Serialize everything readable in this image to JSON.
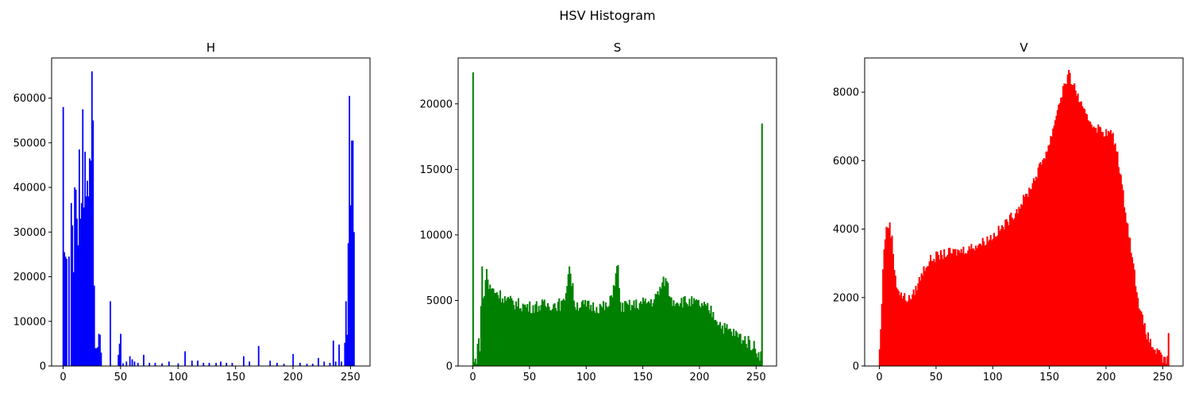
{
  "figure": {
    "suptitle": "HSV Histogram"
  },
  "chart_data": [
    {
      "type": "bar",
      "title": "H",
      "color": "#0000ff",
      "xlim": [
        -10,
        267
      ],
      "ylim": [
        0,
        69000
      ],
      "xticks": [
        0,
        50,
        100,
        150,
        200,
        250
      ],
      "yticks": [
        0,
        10000,
        20000,
        30000,
        40000,
        50000,
        60000
      ],
      "grid": false,
      "points": [
        [
          0,
          58000
        ],
        [
          1,
          25500
        ],
        [
          2,
          24500
        ],
        [
          3,
          24000
        ],
        [
          5,
          24500
        ],
        [
          7,
          36500
        ],
        [
          8,
          31500
        ],
        [
          9,
          21000
        ],
        [
          10,
          40000
        ],
        [
          11,
          39500
        ],
        [
          12,
          33000
        ],
        [
          13,
          27000
        ],
        [
          14,
          48500
        ],
        [
          15,
          33000
        ],
        [
          16,
          36500
        ],
        [
          17,
          57500
        ],
        [
          18,
          35500
        ],
        [
          19,
          48000
        ],
        [
          20,
          38000
        ],
        [
          21,
          41500
        ],
        [
          22,
          38000
        ],
        [
          23,
          46500
        ],
        [
          24,
          46000
        ],
        [
          25,
          66000
        ],
        [
          26,
          55000
        ],
        [
          27,
          18000
        ],
        [
          28,
          4000
        ],
        [
          29,
          4000
        ],
        [
          30,
          4200
        ],
        [
          31,
          7200
        ],
        [
          32,
          7000
        ],
        [
          33,
          3000
        ],
        [
          41,
          14500
        ],
        [
          48,
          2500
        ],
        [
          49,
          5000
        ],
        [
          50,
          7200
        ],
        [
          52,
          600
        ],
        [
          55,
          1000
        ],
        [
          58,
          2200
        ],
        [
          60,
          1500
        ],
        [
          62,
          1000
        ],
        [
          65,
          700
        ],
        [
          70,
          2500
        ],
        [
          75,
          700
        ],
        [
          80,
          700
        ],
        [
          86,
          600
        ],
        [
          92,
          1000
        ],
        [
          100,
          600
        ],
        [
          106,
          3300
        ],
        [
          112,
          1200
        ],
        [
          117,
          1200
        ],
        [
          122,
          700
        ],
        [
          127,
          700
        ],
        [
          133,
          700
        ],
        [
          137,
          1000
        ],
        [
          142,
          700
        ],
        [
          147,
          700
        ],
        [
          157,
          2200
        ],
        [
          162,
          1000
        ],
        [
          170,
          4500
        ],
        [
          180,
          1200
        ],
        [
          186,
          700
        ],
        [
          192,
          500
        ],
        [
          200,
          2700
        ],
        [
          206,
          700
        ],
        [
          212,
          500
        ],
        [
          217,
          500
        ],
        [
          222,
          1800
        ],
        [
          227,
          1000
        ],
        [
          232,
          700
        ],
        [
          235,
          5700
        ],
        [
          237,
          1000
        ],
        [
          240,
          4800
        ],
        [
          242,
          1000
        ],
        [
          245,
          5200
        ],
        [
          246,
          14500
        ],
        [
          247,
          7000
        ],
        [
          248,
          27500
        ],
        [
          249,
          60500
        ],
        [
          250,
          36000
        ],
        [
          251,
          50500
        ],
        [
          252,
          50500
        ],
        [
          253,
          30000
        ]
      ]
    },
    {
      "type": "bar",
      "title": "S",
      "color": "#008000",
      "xlim": [
        -13,
        268
      ],
      "ylim": [
        0,
        23500
      ],
      "xticks": [
        0,
        50,
        100,
        150,
        200,
        250
      ],
      "yticks": [
        0,
        5000,
        10000,
        15000,
        20000
      ],
      "grid": false,
      "spikes": [
        [
          0,
          22400
        ],
        [
          8,
          7600
        ],
        [
          12,
          7400
        ],
        [
          85,
          7600
        ],
        [
          128,
          7700
        ],
        [
          170,
          6700
        ],
        [
          255,
          18500
        ]
      ],
      "envelope": [
        [
          0,
          22400
        ],
        [
          1,
          200
        ],
        [
          3,
          600
        ],
        [
          4,
          1800
        ],
        [
          6,
          1600
        ],
        [
          7,
          4500
        ],
        [
          8,
          7600
        ],
        [
          9,
          5000
        ],
        [
          10,
          5500
        ],
        [
          11,
          6500
        ],
        [
          12,
          7400
        ],
        [
          14,
          6000
        ],
        [
          20,
          5700
        ],
        [
          30,
          5000
        ],
        [
          40,
          4700
        ],
        [
          50,
          4500
        ],
        [
          60,
          4600
        ],
        [
          70,
          4700
        ],
        [
          80,
          4700
        ],
        [
          85,
          7600
        ],
        [
          90,
          4700
        ],
        [
          100,
          4600
        ],
        [
          110,
          4500
        ],
        [
          120,
          4500
        ],
        [
          128,
          7700
        ],
        [
          130,
          4500
        ],
        [
          140,
          4600
        ],
        [
          150,
          4800
        ],
        [
          160,
          5000
        ],
        [
          170,
          6700
        ],
        [
          175,
          5000
        ],
        [
          180,
          5000
        ],
        [
          190,
          4900
        ],
        [
          200,
          4700
        ],
        [
          210,
          4200
        ],
        [
          215,
          3600
        ],
        [
          220,
          3000
        ],
        [
          230,
          2500
        ],
        [
          240,
          2000
        ],
        [
          248,
          1500
        ],
        [
          252,
          1000
        ],
        [
          254,
          800
        ],
        [
          255,
          18500
        ]
      ],
      "jitter": 500
    },
    {
      "type": "bar",
      "title": "V",
      "color": "#ff0000",
      "xlim": [
        -13,
        268
      ],
      "ylim": [
        0,
        9000
      ],
      "xticks": [
        0,
        50,
        100,
        150,
        200,
        250
      ],
      "yticks": [
        0,
        2000,
        4000,
        6000,
        8000
      ],
      "grid": false,
      "envelope": [
        [
          0,
          500
        ],
        [
          1,
          1000
        ],
        [
          2,
          1900
        ],
        [
          3,
          2900
        ],
        [
          5,
          3800
        ],
        [
          7,
          4100
        ],
        [
          9,
          4100
        ],
        [
          11,
          3700
        ],
        [
          13,
          2900
        ],
        [
          15,
          2400
        ],
        [
          18,
          2100
        ],
        [
          22,
          2000
        ],
        [
          26,
          1950
        ],
        [
          30,
          2100
        ],
        [
          35,
          2500
        ],
        [
          40,
          2900
        ],
        [
          45,
          3100
        ],
        [
          50,
          3200
        ],
        [
          60,
          3300
        ],
        [
          70,
          3350
        ],
        [
          80,
          3450
        ],
        [
          90,
          3600
        ],
        [
          100,
          3800
        ],
        [
          110,
          4100
        ],
        [
          120,
          4500
        ],
        [
          130,
          5000
        ],
        [
          140,
          5700
        ],
        [
          150,
          6500
        ],
        [
          157,
          7500
        ],
        [
          162,
          8100
        ],
        [
          167,
          8500
        ],
        [
          170,
          8300
        ],
        [
          175,
          7900
        ],
        [
          180,
          7400
        ],
        [
          190,
          7000
        ],
        [
          200,
          6800
        ],
        [
          205,
          6800
        ],
        [
          210,
          6200
        ],
        [
          215,
          5000
        ],
        [
          220,
          3900
        ],
        [
          225,
          2700
        ],
        [
          230,
          1600
        ],
        [
          235,
          1000
        ],
        [
          240,
          600
        ],
        [
          245,
          400
        ],
        [
          250,
          200
        ],
        [
          254,
          150
        ],
        [
          255,
          1050
        ]
      ],
      "jitter": 150
    }
  ]
}
